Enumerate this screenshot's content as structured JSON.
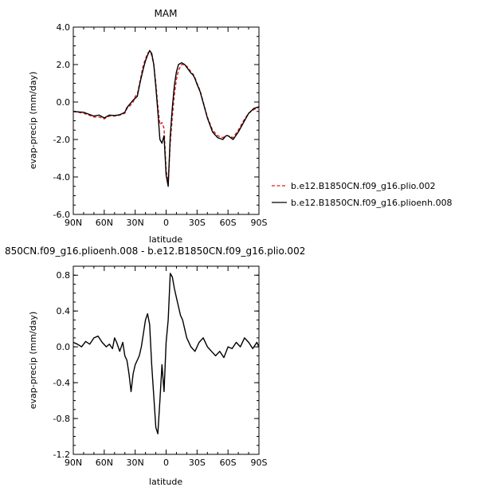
{
  "chart_data": [
    {
      "type": "line",
      "title": "MAM",
      "xlabel": "latitude",
      "ylabel": "evap-precip (mm/day)",
      "xlim": [
        90,
        -90
      ],
      "ylim": [
        -6.0,
        4.0
      ],
      "xticks": [
        90,
        60,
        30,
        0,
        -30,
        -60,
        -90
      ],
      "xticklabels": [
        "90N",
        "60N",
        "30N",
        "0",
        "30S",
        "60S",
        "90S"
      ],
      "yticks": [
        -6,
        -4,
        -2,
        0,
        2,
        4
      ],
      "yticklabels": [
        "-6.0",
        "-4.0",
        "-2.0",
        "0.0",
        "2.0",
        "4.0"
      ],
      "legend_position": "right",
      "series": [
        {
          "name": "b.e12.B1850CN.f09_g16.plio.002",
          "color": "#e31a1c",
          "dash": "dashed",
          "x": [
            90,
            80,
            70,
            65,
            60,
            55,
            50,
            45,
            40,
            38,
            35,
            32,
            30,
            28,
            25,
            22,
            20,
            18,
            16,
            14,
            12,
            10,
            8,
            6,
            4,
            2,
            0,
            -2,
            -4,
            -6,
            -8,
            -10,
            -12,
            -15,
            -18,
            -20,
            -22,
            -24,
            -26,
            -28,
            -30,
            -33,
            -36,
            -40,
            -45,
            -50,
            -55,
            -58,
            -60,
            -65,
            -70,
            -75,
            -80,
            -85,
            -90
          ],
          "y": [
            -0.5,
            -0.6,
            -0.8,
            -0.8,
            -0.9,
            -0.75,
            -0.75,
            -0.7,
            -0.6,
            -0.35,
            -0.2,
            0.0,
            0.3,
            0.4,
            1.2,
            2.0,
            2.3,
            2.6,
            2.7,
            2.5,
            2.0,
            1.0,
            -0.2,
            -1.2,
            -1.1,
            -1.4,
            -3.6,
            -4.3,
            -2.2,
            -0.8,
            0.4,
            1.2,
            1.7,
            2.0,
            2.0,
            1.9,
            1.8,
            1.6,
            1.5,
            1.3,
            1.0,
            0.6,
            0.0,
            -0.8,
            -1.5,
            -1.8,
            -1.9,
            -1.8,
            -1.8,
            -1.9,
            -1.5,
            -1.0,
            -0.6,
            -0.4,
            -0.3
          ]
        },
        {
          "name": "b.e12.B1850CN.f09_g16.plioenh.008",
          "color": "#000000",
          "dash": "solid",
          "x": [
            90,
            80,
            70,
            65,
            60,
            55,
            50,
            45,
            40,
            38,
            35,
            32,
            30,
            28,
            25,
            22,
            20,
            18,
            16,
            14,
            12,
            10,
            8,
            6,
            4,
            2,
            0,
            -2,
            -4,
            -6,
            -8,
            -10,
            -12,
            -15,
            -18,
            -20,
            -22,
            -24,
            -26,
            -28,
            -30,
            -33,
            -36,
            -40,
            -45,
            -50,
            -55,
            -58,
            -60,
            -65,
            -70,
            -75,
            -80,
            -85,
            -90
          ],
          "y": [
            -0.5,
            -0.55,
            -0.75,
            -0.7,
            -0.85,
            -0.7,
            -0.72,
            -0.68,
            -0.55,
            -0.3,
            -0.1,
            0.1,
            0.2,
            0.3,
            1.1,
            1.8,
            2.2,
            2.5,
            2.75,
            2.6,
            2.0,
            0.8,
            -0.5,
            -2.0,
            -2.2,
            -1.8,
            -3.9,
            -4.5,
            -1.8,
            -0.3,
            0.9,
            1.6,
            2.0,
            2.1,
            2.0,
            1.85,
            1.7,
            1.55,
            1.45,
            1.25,
            0.95,
            0.55,
            -0.05,
            -0.85,
            -1.6,
            -1.9,
            -2.0,
            -1.8,
            -1.8,
            -2.0,
            -1.6,
            -1.1,
            -0.6,
            -0.35,
            -0.25
          ]
        }
      ]
    },
    {
      "type": "line",
      "title": "850CN.f09_g16.plioenh.008 - b.e12.B1850CN.f09_g16.plio.002",
      "xlabel": "latitude",
      "ylabel": "evap-precip (mm/day)",
      "xlim": [
        90,
        -90
      ],
      "ylim": [
        -1.2,
        0.9
      ],
      "xticks": [
        90,
        60,
        30,
        0,
        -30,
        -60,
        -90
      ],
      "xticklabels": [
        "90N",
        "60N",
        "30N",
        "0",
        "30S",
        "60S",
        "90S"
      ],
      "yticks": [
        -1.2,
        -0.8,
        -0.4,
        0.0,
        0.4,
        0.8
      ],
      "yticklabels": [
        "-1.2",
        "-0.8",
        "-0.4",
        "0.0",
        "0.4",
        "0.8"
      ],
      "series": [
        {
          "color": "#000000",
          "x": [
            90,
            86,
            82,
            78,
            74,
            70,
            66,
            62,
            58,
            55,
            52,
            50,
            48,
            45,
            42,
            40,
            38,
            36,
            34,
            32,
            30,
            28,
            26,
            24,
            22,
            20,
            18,
            16,
            14,
            12,
            10,
            8,
            6,
            4,
            2,
            0,
            -2,
            -4,
            -6,
            -8,
            -10,
            -12,
            -14,
            -16,
            -18,
            -20,
            -24,
            -28,
            -32,
            -36,
            -40,
            -44,
            -48,
            -52,
            -56,
            -60,
            -64,
            -68,
            -72,
            -76,
            -80,
            -84,
            -88,
            -90
          ],
          "y": [
            0.05,
            0.03,
            0.0,
            0.06,
            0.03,
            0.1,
            0.12,
            0.05,
            0.0,
            0.03,
            -0.02,
            0.1,
            0.05,
            -0.05,
            0.05,
            -0.1,
            -0.15,
            -0.3,
            -0.5,
            -0.3,
            -0.2,
            -0.15,
            -0.1,
            0.0,
            0.15,
            0.3,
            0.37,
            0.25,
            -0.2,
            -0.55,
            -0.9,
            -0.97,
            -0.6,
            -0.2,
            -0.5,
            0.05,
            0.3,
            0.82,
            0.78,
            0.65,
            0.55,
            0.45,
            0.35,
            0.3,
            0.2,
            0.1,
            0.0,
            -0.05,
            0.05,
            0.1,
            0.0,
            -0.05,
            -0.1,
            -0.05,
            -0.12,
            0.0,
            -0.02,
            0.05,
            0.0,
            0.1,
            0.05,
            -0.02,
            0.05,
            0.0
          ]
        }
      ]
    }
  ]
}
